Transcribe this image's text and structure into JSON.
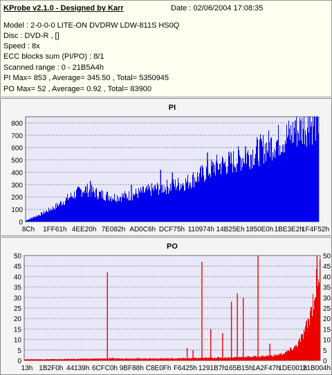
{
  "header": {
    "title": "KProbe v2.1.0 - Designed by Karr",
    "date": "Date : 02/06/2004 17:08:35",
    "model": "Model : 2-0-0-0 LITE-ON DVDRW LDW-811S   HS0Q",
    "disc": "Disc : DVD-R ,  []",
    "speed": "Speed : 8x",
    "ecc": "ECC blocks sum (PI/PO) : 8/1",
    "range": "Scanned range : 0 - 21B5A4h",
    "pi_stats": "PI Max= 853 , Average= 345.50 , Total= 5350945",
    "po_stats": "PO Max= 52 , Average= 0.92 , Total= 83900"
  },
  "colors": {
    "pi": "#0000ee",
    "po": "#ee0000",
    "plot_bg": "#e8e8f8",
    "panel_bg": "#f4f4f4"
  },
  "chart_data": [
    {
      "type": "area",
      "title": "PI",
      "ylim": [
        0,
        850
      ],
      "yticks": [
        0,
        100,
        200,
        300,
        400,
        500,
        600,
        700,
        800
      ],
      "xticks": [
        "8Ch",
        "1FF61h",
        "4EE20h",
        "7E082h",
        "AD0C6h",
        "DCF75h",
        "110974h",
        "14B25Eh",
        "1850E0h",
        "1BE3E2h",
        "1F4F52h"
      ],
      "profile_x": [
        0,
        0.05,
        0.1,
        0.15,
        0.2,
        0.25,
        0.3,
        0.35,
        0.4,
        0.45,
        0.5,
        0.55,
        0.6,
        0.65,
        0.7,
        0.75,
        0.8,
        0.85,
        0.9,
        0.95,
        1.0
      ],
      "profile_y": [
        10,
        60,
        120,
        200,
        265,
        225,
        200,
        210,
        240,
        270,
        290,
        320,
        380,
        450,
        480,
        530,
        580,
        640,
        700,
        770,
        810
      ],
      "spikes": [
        [
          0.22,
          330
        ],
        [
          0.36,
          300
        ],
        [
          0.46,
          420
        ],
        [
          0.5,
          400
        ],
        [
          0.62,
          560
        ],
        [
          0.67,
          490
        ],
        [
          0.75,
          610
        ],
        [
          0.83,
          640
        ],
        [
          0.92,
          820
        ],
        [
          0.97,
          850
        ]
      ]
    },
    {
      "type": "area",
      "title": "PO",
      "ylim": [
        0,
        50
      ],
      "yticks": [
        0,
        5,
        10,
        15,
        20,
        25,
        30,
        35,
        40,
        45,
        50
      ],
      "xticks": [
        "13h",
        "1B2F0h",
        "44139h",
        "6CFC0h",
        "9BF88h",
        "C8E0Fh",
        "F6425h",
        "1291B7h",
        "165B15h",
        "1A2F47h",
        "1DE001h",
        "21B004h"
      ],
      "profile_x": [
        0,
        0.1,
        0.2,
        0.3,
        0.4,
        0.5,
        0.6,
        0.7,
        0.8,
        0.85,
        0.88,
        0.9,
        0.92,
        0.94,
        0.96,
        0.98,
        1.0
      ],
      "profile_y": [
        0.6,
        0.6,
        0.8,
        1,
        1,
        1,
        1.2,
        1.5,
        2,
        2.5,
        3.5,
        5,
        7,
        11,
        18,
        30,
        45
      ],
      "spikes": [
        [
          0.28,
          42
        ],
        [
          0.55,
          6
        ],
        [
          0.57,
          5
        ],
        [
          0.6,
          47
        ],
        [
          0.63,
          15
        ],
        [
          0.67,
          13
        ],
        [
          0.7,
          28
        ],
        [
          0.72,
          32
        ],
        [
          0.74,
          30
        ],
        [
          0.79,
          50
        ],
        [
          0.83,
          8
        ],
        [
          0.99,
          50
        ]
      ]
    }
  ]
}
